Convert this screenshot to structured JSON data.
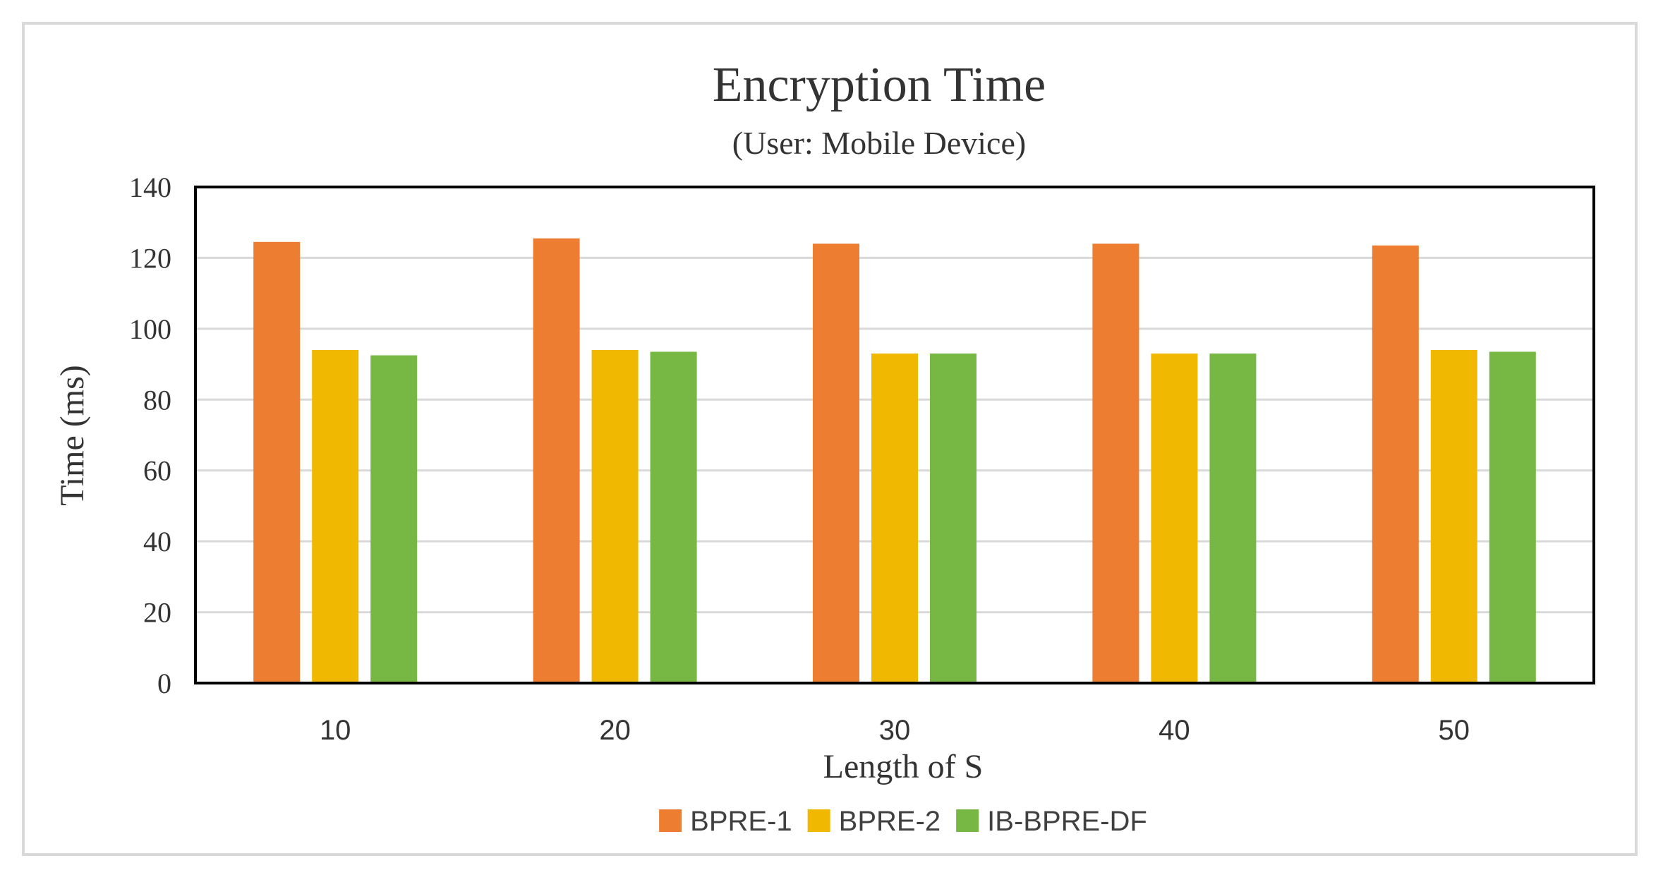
{
  "chart_data": {
    "type": "bar",
    "title": "Encryption Time",
    "subtitle": "(User: Mobile Device)",
    "xlabel": "Length of S",
    "ylabel": "Time (ms)",
    "categories": [
      "10",
      "20",
      "30",
      "40",
      "50"
    ],
    "ylim": [
      0,
      140
    ],
    "yticks": [
      0,
      20,
      40,
      60,
      80,
      100,
      120,
      140
    ],
    "grid": true,
    "legend_position": "bottom",
    "series": [
      {
        "name": "BPRE-1",
        "color": "#ed7d31",
        "values": [
          124.5,
          125.5,
          124,
          124,
          123.5
        ]
      },
      {
        "name": "BPRE-2",
        "color": "#f0b800",
        "values": [
          94,
          94,
          93,
          93,
          94
        ]
      },
      {
        "name": "IB-BPRE-DF",
        "color": "#76b843",
        "values": [
          92.5,
          93.5,
          93,
          93,
          93.5
        ]
      }
    ]
  }
}
